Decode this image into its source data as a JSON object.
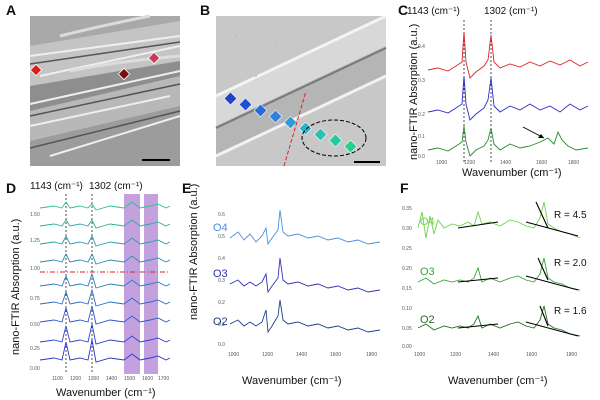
{
  "panels": {
    "a": {
      "label": "A"
    },
    "b": {
      "label": "B"
    },
    "c": {
      "label": "C",
      "peak1_label": "1143 (cm⁻¹)",
      "peak2_label": "1302 (cm⁻¹)",
      "ylabel": "nano-FTIR Absorption (a.u.)",
      "xlabel": "Wavenumber (cm⁻¹)",
      "yticks": [
        "0.4",
        "0.3",
        "0.2",
        "0.1",
        "0.0"
      ],
      "xticks": [
        "1000",
        "1200",
        "1400",
        "1600",
        "1800"
      ],
      "colors": [
        "#d62728",
        "#2c2cc8",
        "#2a8a2a"
      ]
    },
    "d": {
      "label": "D",
      "peak1_label": "1143 (cm⁻¹)",
      "peak2_label": "1302 (cm⁻¹)",
      "ylabel": "nano-FTIR Absorption (a.u.)",
      "xlabel": "Wavenumber (cm⁻¹)",
      "yticks": [
        "1.50",
        "1.25",
        "1.00",
        "0.75",
        "0.50",
        "0.25",
        "0.00"
      ],
      "xticks": [
        "1100",
        "1200",
        "1300",
        "1400",
        "1500",
        "1600",
        "1700"
      ],
      "trace_count": 9,
      "shade_color": "#b48ad6"
    },
    "e": {
      "label": "E",
      "ylabel": "nano-FTIR Absorption (a.u.)",
      "xlabel": "Wavenumber (cm⁻¹)",
      "yticks": [
        "0.6",
        "0.5",
        "0.4",
        "0.3",
        "0.2",
        "0.1",
        "0.0"
      ],
      "xticks": [
        "1000",
        "1200",
        "1400",
        "1600",
        "1800"
      ],
      "series": [
        {
          "name": "O4",
          "color": "#4a8fe0"
        },
        {
          "name": "O3",
          "color": "#3030b8"
        },
        {
          "name": "O2",
          "color": "#1c3f8a"
        }
      ]
    },
    "f": {
      "label": "F",
      "xlabel": "Wavenumber (cm⁻¹)",
      "yticks": [
        "0.35",
        "0.30",
        "0.25",
        "0.20",
        "0.15",
        "0.10",
        "0.05",
        "0.00"
      ],
      "xticks": [
        "1000",
        "1200",
        "1400",
        "1600",
        "1800"
      ],
      "series": [
        {
          "name": "O4",
          "color": "#6fd24a",
          "ratio": "R = 4.5"
        },
        {
          "name": "O3",
          "color": "#3aa23a",
          "ratio": "R = 2.0"
        },
        {
          "name": "O2",
          "color": "#1f6e1f",
          "ratio": "R = 1.6"
        }
      ]
    }
  }
}
